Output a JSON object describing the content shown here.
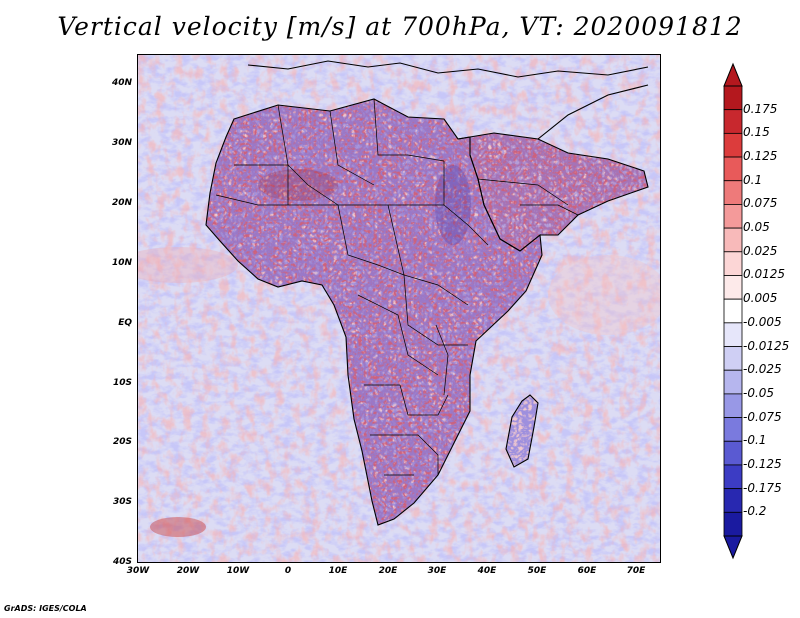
{
  "title": "Vertical velocity [m/s] at 700hPa, VT: 2020091812",
  "map": {
    "y_ticks": [
      "40N",
      "30N",
      "20N",
      "10N",
      "EQ",
      "10S",
      "20S",
      "30S",
      "40S"
    ],
    "x_ticks": [
      "30W",
      "20W",
      "10W",
      "0",
      "10E",
      "20E",
      "30E",
      "40E",
      "50E",
      "60E",
      "70E"
    ],
    "lon_range": [
      -30,
      75
    ],
    "lat_range": [
      -40,
      45
    ],
    "field": "vertical velocity",
    "level": "700hPa"
  },
  "colorbar": {
    "levels": [
      "0.175",
      "0.15",
      "0.125",
      "0.1",
      "0.075",
      "0.05",
      "0.025",
      "0.0125",
      "0.005",
      "-0.005",
      "-0.0125",
      "-0.025",
      "-0.05",
      "-0.075",
      "-0.1",
      "-0.125",
      "-0.175",
      "-0.2"
    ],
    "colors": [
      "#b4181e",
      "#c8282e",
      "#dc3c3c",
      "#e85a5a",
      "#ee7a7a",
      "#f49a9a",
      "#f8baba",
      "#fcd6d6",
      "#fdeaea",
      "#ffffff",
      "#e6e6fa",
      "#cfcff4",
      "#b6b6ee",
      "#9898e6",
      "#7a7ade",
      "#5a5ad2",
      "#3c3cc4",
      "#2828b0",
      "#1a1aa0"
    ],
    "top_arrow_color": "#b4181e",
    "bottom_arrow_color": "#1a1aa0"
  },
  "credit": "GrADS: IGES/COLA"
}
